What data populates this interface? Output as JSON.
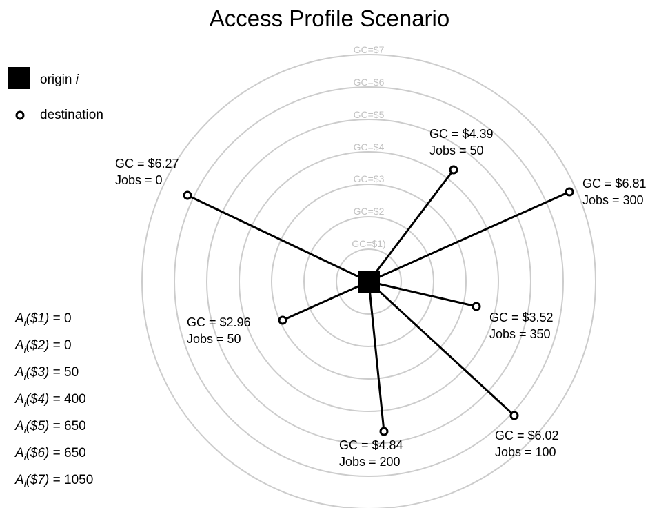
{
  "title": "Access Profile Scenario",
  "legend": {
    "origin_label": "origin",
    "origin_sub": "i",
    "destination_label": "destination"
  },
  "rings": {
    "color": "#cccccc",
    "labels": [
      "GC=$1)",
      "GC=$2",
      "GC=$3",
      "GC=$4",
      "GC=$5",
      "GC=$6",
      "GC=$7"
    ]
  },
  "destinations": [
    {
      "gc": "GC = $6.27",
      "jobs": "Jobs = 0"
    },
    {
      "gc": "GC = $4.39",
      "jobs": "Jobs = 50"
    },
    {
      "gc": "GC = $6.81",
      "jobs": "Jobs = 300"
    },
    {
      "gc": "GC = $2.96",
      "jobs": "Jobs = 50"
    },
    {
      "gc": "GC = $3.52",
      "jobs": "Jobs = 350"
    },
    {
      "gc": "GC = $4.84",
      "jobs": "Jobs = 200"
    },
    {
      "gc": "GC = $6.02",
      "jobs": "Jobs = 100"
    }
  ],
  "accessibility": [
    {
      "A": "A",
      "sub": "i",
      "arg": "($1)",
      "value": " = 0"
    },
    {
      "A": "A",
      "sub": "i",
      "arg": "($2)",
      "value": " = 0"
    },
    {
      "A": "A",
      "sub": "i",
      "arg": "($3)",
      "value": " = 50"
    },
    {
      "A": "A",
      "sub": "i",
      "arg": "($4)",
      "value": " = 400"
    },
    {
      "A": "A",
      "sub": "i",
      "arg": "($5)",
      "value": " = 650"
    },
    {
      "A": "A",
      "sub": "i",
      "arg": "($6)",
      "value": " = 650"
    },
    {
      "A": "A",
      "sub": "i",
      "arg": "($7)",
      "value": " = 1050"
    }
  ]
}
